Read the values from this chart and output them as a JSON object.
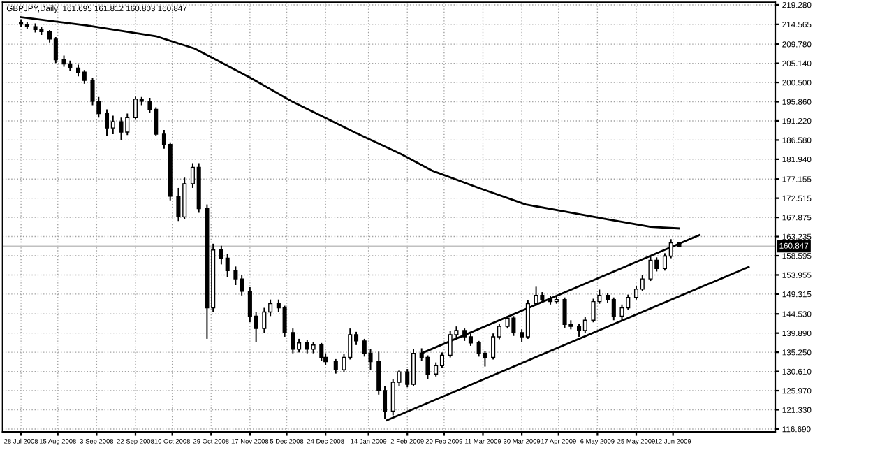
{
  "chart_data": {
    "type": "candlestick",
    "title": "GBPJPY,Daily  161.695 161.812 160.803 160.847",
    "x": [
      "2008-07-28",
      "2008-07-31",
      "2008-08-04",
      "2008-08-07",
      "2008-08-11",
      "2008-08-14",
      "2008-08-18",
      "2008-08-21",
      "2008-08-25",
      "2008-08-28",
      "2008-09-01",
      "2008-09-04",
      "2008-09-08",
      "2008-09-11",
      "2008-09-15",
      "2008-09-18",
      "2008-09-22",
      "2008-09-25",
      "2008-09-29",
      "2008-10-02",
      "2008-10-06",
      "2008-10-09",
      "2008-10-13",
      "2008-10-16",
      "2008-10-20",
      "2008-10-23",
      "2008-10-27",
      "2008-10-30",
      "2008-11-03",
      "2008-11-06",
      "2008-11-10",
      "2008-11-13",
      "2008-11-17",
      "2008-11-20",
      "2008-11-24",
      "2008-11-27",
      "2008-12-01",
      "2008-12-04",
      "2008-12-08",
      "2008-12-11",
      "2008-12-15",
      "2008-12-18",
      "2008-12-22",
      "2008-12-24",
      "2008-12-29",
      "2009-01-02",
      "2009-01-05",
      "2009-01-08",
      "2009-01-12",
      "2009-01-15",
      "2009-01-19",
      "2009-01-22",
      "2009-01-26",
      "2009-01-29",
      "2009-02-02",
      "2009-02-05",
      "2009-02-09",
      "2009-02-12",
      "2009-02-16",
      "2009-02-19",
      "2009-02-23",
      "2009-02-26",
      "2009-03-02",
      "2009-03-05",
      "2009-03-09",
      "2009-03-12",
      "2009-03-16",
      "2009-03-19",
      "2009-03-23",
      "2009-03-26",
      "2009-03-30",
      "2009-04-02",
      "2009-04-06",
      "2009-04-09",
      "2009-04-13",
      "2009-04-16",
      "2009-04-20",
      "2009-04-23",
      "2009-04-27",
      "2009-04-30",
      "2009-05-04",
      "2009-05-07",
      "2009-05-11",
      "2009-05-14",
      "2009-05-18",
      "2009-05-21",
      "2009-05-25",
      "2009-05-28",
      "2009-06-01",
      "2009-06-04",
      "2009-06-08",
      "2009-06-11",
      "2009-06-15"
    ],
    "ohlc": [
      [
        215.0,
        215.8,
        213.9,
        214.6
      ],
      [
        214.6,
        215.2,
        213.5,
        214.0
      ],
      [
        214.0,
        214.8,
        212.6,
        213.3
      ],
      [
        213.3,
        214.0,
        212.0,
        212.8
      ],
      [
        212.8,
        213.2,
        210.2,
        211.0
      ],
      [
        211.0,
        211.5,
        205.2,
        206.0
      ],
      [
        206.0,
        207.0,
        204.3,
        205.0
      ],
      [
        205.0,
        205.8,
        203.2,
        204.0
      ],
      [
        204.0,
        204.8,
        202.0,
        203.0
      ],
      [
        203.0,
        203.5,
        200.2,
        201.0
      ],
      [
        201.0,
        201.6,
        195.0,
        196.0
      ],
      [
        196.0,
        197.0,
        192.0,
        193.0
      ],
      [
        193.0,
        194.0,
        187.5,
        189.5
      ],
      [
        189.5,
        192.5,
        188.0,
        191.0
      ],
      [
        191.0,
        192.0,
        186.5,
        188.5
      ],
      [
        188.5,
        193.0,
        187.8,
        192.0
      ],
      [
        192.0,
        197.1,
        191.5,
        196.5
      ],
      [
        196.5,
        197.0,
        195.0,
        196.0
      ],
      [
        196.0,
        196.8,
        193.2,
        194.0
      ],
      [
        194.0,
        194.5,
        187.5,
        188.0
      ],
      [
        188.0,
        189.0,
        184.5,
        185.5
      ],
      [
        185.5,
        186.0,
        172.0,
        173.0
      ],
      [
        173.0,
        175.0,
        167.0,
        168.0
      ],
      [
        168.0,
        177.5,
        167.5,
        176.0
      ],
      [
        176.0,
        181.0,
        175.0,
        180.0
      ],
      [
        180.0,
        181.0,
        169.0,
        170.0
      ],
      [
        170.0,
        171.0,
        138.5,
        146.0
      ],
      [
        146.0,
        161.5,
        145.0,
        160.0
      ],
      [
        160.0,
        161.0,
        156.5,
        158.0
      ],
      [
        158.0,
        159.0,
        153.5,
        155.0
      ],
      [
        155.0,
        156.0,
        151.5,
        153.0
      ],
      [
        153.0,
        154.0,
        149.0,
        150.0
      ],
      [
        150.0,
        151.0,
        142.5,
        144.0
      ],
      [
        144.0,
        145.0,
        137.8,
        141.0
      ],
      [
        141.0,
        146.0,
        140.0,
        145.0
      ],
      [
        145.0,
        148.0,
        144.0,
        147.0
      ],
      [
        147.0,
        148.0,
        145.0,
        146.0
      ],
      [
        146.0,
        146.5,
        139.0,
        140.0
      ],
      [
        140.0,
        141.0,
        135.0,
        136.0
      ],
      [
        136.0,
        138.5,
        135.2,
        137.5
      ],
      [
        137.5,
        138.2,
        135.0,
        136.0
      ],
      [
        136.0,
        137.8,
        135.0,
        137.0
      ],
      [
        137.0,
        137.5,
        133.2,
        134.0
      ],
      [
        134.0,
        135.0,
        132.2,
        133.0
      ],
      [
        133.0,
        133.6,
        130.1,
        131.0
      ],
      [
        131.0,
        134.8,
        130.5,
        134.0
      ],
      [
        134.0,
        141.0,
        133.5,
        139.5
      ],
      [
        139.5,
        140.2,
        137.0,
        138.0
      ],
      [
        138.0,
        138.5,
        134.2,
        135.0
      ],
      [
        135.0,
        136.0,
        131.0,
        133.0
      ],
      [
        133.0,
        135.4,
        125.0,
        126.0
      ],
      [
        126.0,
        127.0,
        119.2,
        121.0
      ],
      [
        121.0,
        128.8,
        120.0,
        128.0
      ],
      [
        128.0,
        131.0,
        127.0,
        130.5
      ],
      [
        130.5,
        131.2,
        126.8,
        127.5
      ],
      [
        127.5,
        136.0,
        127.0,
        135.0
      ],
      [
        135.0,
        136.2,
        133.2,
        134.0
      ],
      [
        134.0,
        134.5,
        128.8,
        130.0
      ],
      [
        130.0,
        132.8,
        129.4,
        132.0
      ],
      [
        132.0,
        135.2,
        131.5,
        134.5
      ],
      [
        134.5,
        140.5,
        134.0,
        139.5
      ],
      [
        139.5,
        141.5,
        138.8,
        140.5
      ],
      [
        140.5,
        141.0,
        138.0,
        139.0
      ],
      [
        139.0,
        139.8,
        136.8,
        137.5
      ],
      [
        137.5,
        138.0,
        134.2,
        135.0
      ],
      [
        135.0,
        135.6,
        131.8,
        134.0
      ],
      [
        134.0,
        139.8,
        133.5,
        139.0
      ],
      [
        139.0,
        142.2,
        138.4,
        141.5
      ],
      [
        141.5,
        144.0,
        141.0,
        143.5
      ],
      [
        143.5,
        144.0,
        139.2,
        140.0
      ],
      [
        140.0,
        140.8,
        137.8,
        139.0
      ],
      [
        139.0,
        147.8,
        138.5,
        147.0
      ],
      [
        147.0,
        151.1,
        146.5,
        149.0
      ],
      [
        149.0,
        149.8,
        147.2,
        148.0
      ],
      [
        148.0,
        148.8,
        146.8,
        147.5
      ],
      [
        147.5,
        148.8,
        147.0,
        148.0
      ],
      [
        148.0,
        148.5,
        141.2,
        142.0
      ],
      [
        142.0,
        143.0,
        140.8,
        141.5
      ],
      [
        141.5,
        142.2,
        139.0,
        140.5
      ],
      [
        140.5,
        143.8,
        140.0,
        143.0
      ],
      [
        143.0,
        148.2,
        142.5,
        147.5
      ],
      [
        147.5,
        150.4,
        147.0,
        149.0
      ],
      [
        149.0,
        149.6,
        147.2,
        148.0
      ],
      [
        148.0,
        148.5,
        143.0,
        144.0
      ],
      [
        144.0,
        146.8,
        142.7,
        146.0
      ],
      [
        146.0,
        149.2,
        145.5,
        148.5
      ],
      [
        148.5,
        151.2,
        148.0,
        150.5
      ],
      [
        150.5,
        154.0,
        150.0,
        153.0
      ],
      [
        153.0,
        158.6,
        152.5,
        157.5
      ],
      [
        157.5,
        158.2,
        154.8,
        155.5
      ],
      [
        155.5,
        159.2,
        155.0,
        158.5
      ],
      [
        158.5,
        162.6,
        158.0,
        161.695
      ],
      [
        161.695,
        161.812,
        160.803,
        160.847
      ]
    ],
    "color": "#000000",
    "series": [
      {
        "type": "line",
        "color": "#000000",
        "x": [
          "2008-07-28",
          "2008-08-29",
          "2008-10-02",
          "2008-10-21",
          "2008-11-17",
          "2008-12-08",
          "2009-01-07",
          "2009-01-30",
          "2009-02-14",
          "2009-03-09",
          "2009-04-01",
          "2009-04-20",
          "2009-05-11",
          "2009-06-01",
          "2009-06-15"
        ],
        "values": [
          216.3,
          214.3,
          211.7,
          208.7,
          201.7,
          195.8,
          188.5,
          183.2,
          179.2,
          175.0,
          171.0,
          169.3,
          167.4,
          165.6,
          165.2
        ]
      },
      {
        "type": "line",
        "color": "#000000",
        "x": [
          "2009-02-09",
          "2009-06-25"
        ],
        "values": [
          135.0,
          163.6
        ]
      },
      {
        "type": "line",
        "color": "#000000",
        "x": [
          "2009-01-23",
          "2009-07-19"
        ],
        "values": [
          118.8,
          155.9
        ]
      }
    ],
    "ref_lines": [
      {
        "axis": "y",
        "value": 160.847,
        "label": "160.847",
        "color": "#c0c0c0"
      }
    ],
    "xlim": [
      "2008-07-19",
      "2009-08-01"
    ],
    "xticks": [
      {
        "value": "2008-07-28",
        "label": "28 Jul 2008"
      },
      {
        "value": "2008-08-15",
        "label": "15 Aug 2008"
      },
      {
        "value": "2008-09-03",
        "label": "3 Sep 2008"
      },
      {
        "value": "2008-09-22",
        "label": "22 Sep 2008"
      },
      {
        "value": "2008-10-10",
        "label": "10 Oct 2008"
      },
      {
        "value": "2008-10-29",
        "label": "29 Oct 2008"
      },
      {
        "value": "2008-11-17",
        "label": "17 Nov 2008"
      },
      {
        "value": "2008-12-05",
        "label": "5 Dec 2008"
      },
      {
        "value": "2008-12-24",
        "label": "24 Dec 2008"
      },
      {
        "value": "2009-01-14",
        "label": "14 Jan 2009"
      },
      {
        "value": "2009-02-02",
        "label": "2 Feb 2009"
      },
      {
        "value": "2009-02-20",
        "label": "20 Feb 2009"
      },
      {
        "value": "2009-03-11",
        "label": "11 Mar 2009"
      },
      {
        "value": "2009-03-30",
        "label": "30 Mar 2009"
      },
      {
        "value": "2009-04-17",
        "label": "17 Apr 2009"
      },
      {
        "value": "2009-05-06",
        "label": "6 May 2009"
      },
      {
        "value": "2009-05-25",
        "label": "25 May 2009"
      },
      {
        "value": "2009-06-12",
        "label": "12 Jun 2009"
      }
    ],
    "ylim": [
      116.0,
      219.9
    ],
    "yticks": [
      {
        "value": 219.28,
        "label": "219.280"
      },
      {
        "value": 214.565,
        "label": "214.565"
      },
      {
        "value": 209.78,
        "label": "209.780"
      },
      {
        "value": 205.14,
        "label": "205.140"
      },
      {
        "value": 200.5,
        "label": "200.500"
      },
      {
        "value": 195.86,
        "label": "195.860"
      },
      {
        "value": 191.22,
        "label": "191.220"
      },
      {
        "value": 186.58,
        "label": "186.580"
      },
      {
        "value": 181.94,
        "label": "181.940"
      },
      {
        "value": 177.155,
        "label": "177.155"
      },
      {
        "value": 172.515,
        "label": "172.515"
      },
      {
        "value": 167.875,
        "label": "167.875"
      },
      {
        "value": 163.235,
        "label": "163.235"
      },
      {
        "value": 158.595,
        "label": "158.595"
      },
      {
        "value": 153.955,
        "label": "153.955"
      },
      {
        "value": 149.315,
        "label": "149.315"
      },
      {
        "value": 144.53,
        "label": "144.530"
      },
      {
        "value": 139.89,
        "label": "139.890"
      },
      {
        "value": 135.25,
        "label": "135.250"
      },
      {
        "value": 130.61,
        "label": "130.610"
      },
      {
        "value": 125.97,
        "label": "125.970"
      },
      {
        "value": 121.33,
        "label": "121.330"
      },
      {
        "value": 116.69,
        "label": "116.690"
      }
    ],
    "grid": true
  }
}
